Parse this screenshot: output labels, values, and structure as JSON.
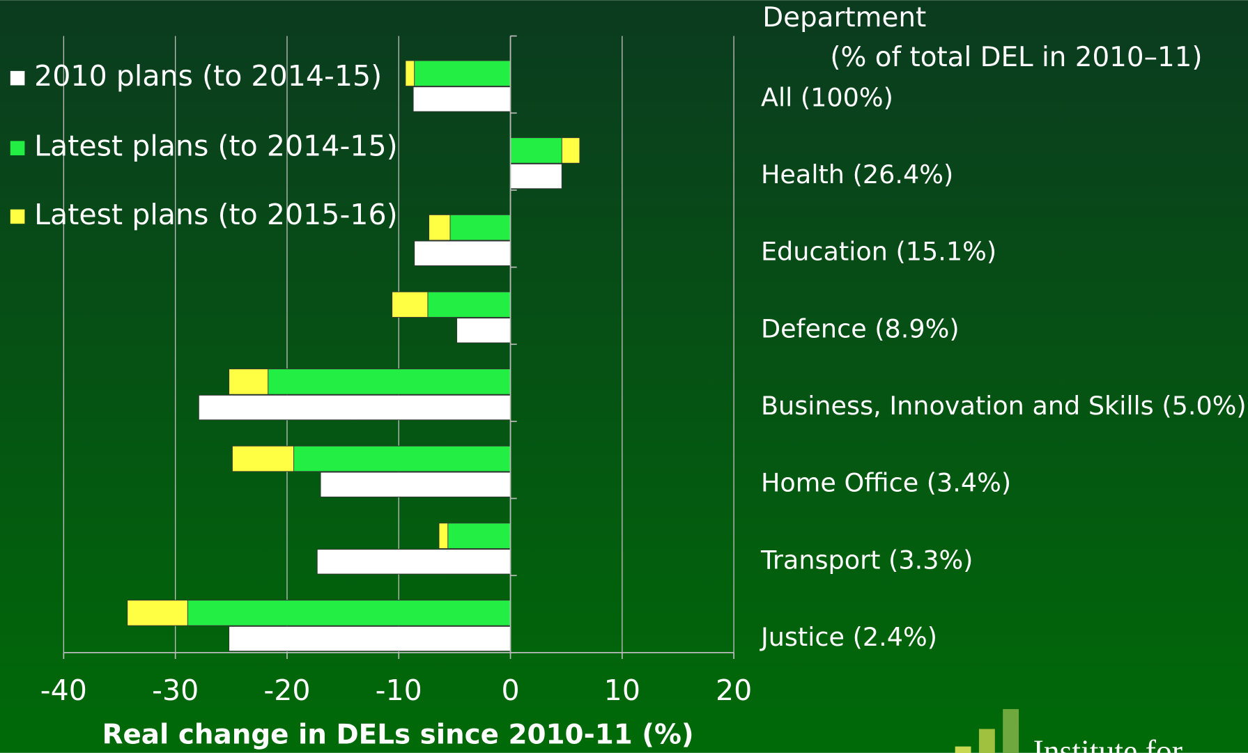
{
  "chart_data": {
    "type": "bar",
    "orientation": "horizontal",
    "axis_title": "Real change in DELs since 2010-11 (%)",
    "category_title": "Department",
    "category_subtitle": "(% of total DEL in 2010–11)",
    "categories": [
      "All (100%)",
      "Health (26.4%)",
      "Education (15.1%)",
      "Defence (8.9%)",
      "Business, Innovation and Skills (5.0%)",
      "Home Office (3.4%)",
      "Transport (3.3%)",
      "Justice (2.4%)"
    ],
    "series": [
      {
        "name": "2010 plans (to 2014-15)",
        "color": "#ffffff",
        "values": [
          -8.7,
          4.6,
          -8.6,
          -4.8,
          -27.9,
          -17.0,
          -17.3,
          -25.2
        ]
      },
      {
        "name": "Latest plans (to 2014-15)",
        "color": "#22ee44",
        "values": [
          -8.6,
          4.6,
          -5.4,
          -7.4,
          -21.7,
          -19.4,
          -5.6,
          -28.9
        ]
      },
      {
        "name": "Latest plans (to 2015-16)",
        "color": "#ffff44",
        "values": [
          -9.4,
          6.2,
          -7.3,
          -10.6,
          -25.2,
          -24.9,
          -6.4,
          -34.3
        ]
      }
    ],
    "xlim": [
      -40,
      20
    ],
    "xticks": [
      -40,
      -30,
      -20,
      -10,
      0,
      10,
      20
    ],
    "grid": true,
    "legend": "top-left",
    "logo": "Institute for"
  }
}
